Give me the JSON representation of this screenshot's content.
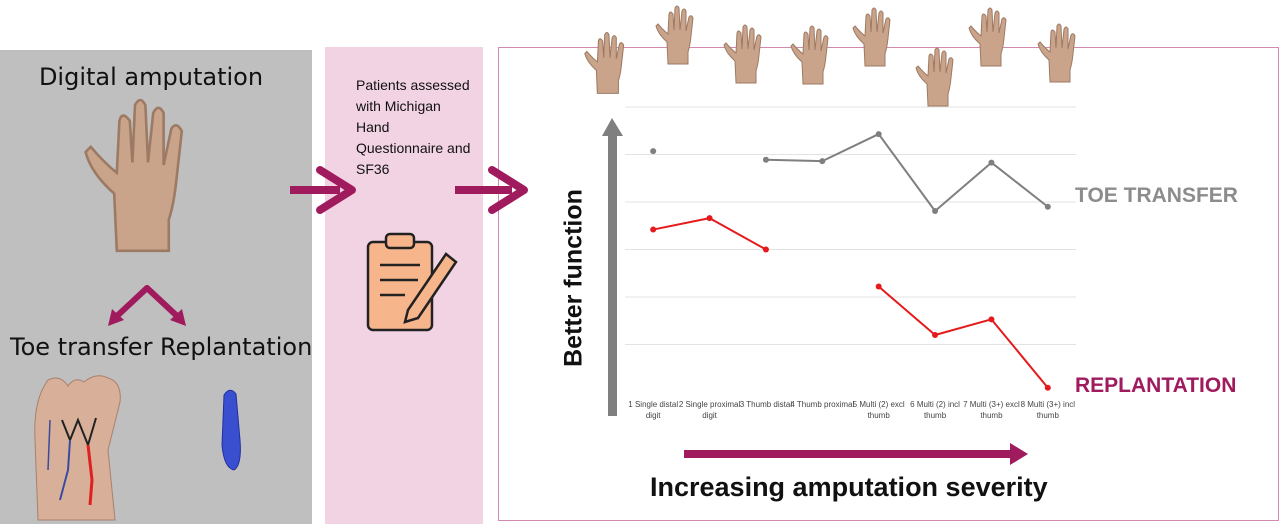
{
  "left_panel": {
    "title": "Digital amputation",
    "option_toe": "Toe transfer",
    "option_replant": "Replantation"
  },
  "middle_panel": {
    "text": "Patients assessed with Michigan Hand Questionnaire and SF36"
  },
  "colors": {
    "arrow": "#a01a5e",
    "toe_series": "#7f7f7f",
    "replant_series": "#e41a1c",
    "replant_label": "#a01a5e",
    "left_bg": "#bfbfbf",
    "mid_bg": "#f2d3e3"
  },
  "icons": [
    "hand-photo",
    "toe-transfer-foot",
    "replanted-digit",
    "clipboard-pen-icon",
    "arrow-right-icon"
  ],
  "chart_data": {
    "type": "line",
    "categories": [
      "1 Single distal digit",
      "2 Single proximal digit",
      "3 Thumb distal",
      "4 Thumb proximal",
      "5 Multi (2) excl thumb",
      "6 Multi (2) incl thumb",
      "7 Multi (3+) excl thumb",
      "8 Multi (3+) incl thumb"
    ],
    "series": [
      {
        "name": "TOE TRANSFER",
        "values": [
          84.5,
          null,
          81.5,
          81.0,
          90.5,
          63.5,
          80.5,
          65.0
        ],
        "color": "#7f7f7f"
      },
      {
        "name": "REPLANTATION",
        "values": [
          57.0,
          61.0,
          50.0,
          null,
          37.0,
          20.0,
          25.5,
          1.5
        ],
        "color": "#e41a1c"
      }
    ],
    "ylim": [
      0,
      100
    ],
    "grid": true,
    "xlabel": "Increasing amputation severity",
    "ylabel": "Better function",
    "legend": "right"
  }
}
